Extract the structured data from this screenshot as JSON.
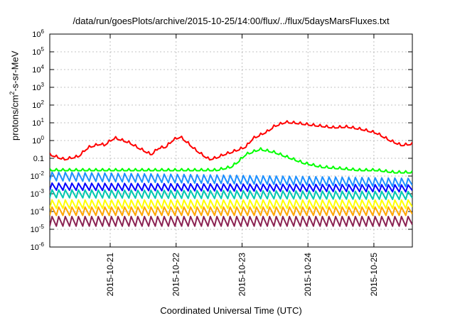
{
  "chart_data": {
    "type": "line",
    "title": "/data/run/goesPlots/archive/2015-10-25/14:00/flux/../flux/5daysMarsFluxes.txt",
    "xlabel": "Coordinated Universal Time (UTC)",
    "ylabel": {
      "pre": "protons/cm",
      "sup": "2",
      "post": "-s-sr-MeV"
    },
    "x_ticks": [
      "2015-10-21",
      "2015-10-22",
      "2015-10-23",
      "2015-10-24",
      "2015-10-25"
    ],
    "x_range": [
      "2015-10-20 02:00",
      "2015-10-25 14:00"
    ],
    "y_scale": "log",
    "ylim": [
      1e-06,
      1000000.0
    ],
    "y_ticks": [
      {
        "b": "10",
        "e": "-6"
      },
      {
        "b": "10",
        "e": "-5"
      },
      {
        "b": "10",
        "e": "-4"
      },
      {
        "b": "10",
        "e": "-3"
      },
      {
        "b": "10",
        "e": "-2"
      },
      {
        "b": "0.1",
        "e": ""
      },
      {
        "b": "10",
        "e": "0"
      },
      {
        "b": "10",
        "e": "1"
      },
      {
        "b": "10",
        "e": "2"
      },
      {
        "b": "10",
        "e": "3"
      },
      {
        "b": "10",
        "e": "4"
      },
      {
        "b": "10",
        "e": "5"
      },
      {
        "b": "10",
        "e": "6"
      }
    ],
    "grid": true,
    "legend": "none",
    "series": [
      {
        "color": "#ff0000",
        "mode": "event",
        "x": [
          0.0,
          0.04,
          0.08,
          0.1,
          0.11,
          0.14,
          0.15,
          0.17,
          0.18,
          0.22,
          0.24,
          0.28,
          0.3,
          0.32,
          0.34,
          0.36,
          0.38,
          0.4,
          0.42,
          0.44,
          0.46,
          0.48,
          0.5,
          0.54,
          0.56,
          0.6,
          0.62,
          0.65,
          0.68,
          0.72,
          0.75,
          0.78,
          0.82,
          0.86,
          0.9,
          0.94,
          0.97,
          1.0
        ],
        "y": [
          0.15,
          0.08,
          0.12,
          0.3,
          0.4,
          0.6,
          0.5,
          1.0,
          1.3,
          0.7,
          0.4,
          0.15,
          0.35,
          0.4,
          1.0,
          1.5,
          0.7,
          0.3,
          0.15,
          0.08,
          0.1,
          0.15,
          0.2,
          0.4,
          1.2,
          3.0,
          6.0,
          10.0,
          9.0,
          7.0,
          6.0,
          5.0,
          5.5,
          4.0,
          2.5,
          0.9,
          0.5,
          0.6
        ]
      },
      {
        "color": "#00ff00",
        "mode": "event",
        "x": [
          0.0,
          0.1,
          0.2,
          0.3,
          0.4,
          0.46,
          0.5,
          0.52,
          0.54,
          0.58,
          0.62,
          0.66,
          0.7,
          0.75,
          0.8,
          0.85,
          0.9,
          0.95,
          1.0
        ],
        "y": [
          0.02,
          0.02,
          0.02,
          0.02,
          0.02,
          0.02,
          0.03,
          0.06,
          0.15,
          0.3,
          0.2,
          0.1,
          0.05,
          0.03,
          0.025,
          0.02,
          0.02,
          0.015,
          0.015
        ]
      },
      {
        "color": "#1e90ff",
        "mode": "saw",
        "base": 0.0055,
        "amp": 3.0,
        "slope": -0.35
      },
      {
        "color": "#0000ff",
        "mode": "saw",
        "base": 0.0016,
        "amp": 2.5,
        "slope": -0.1
      },
      {
        "color": "#00c8b0",
        "mode": "saw",
        "base": 0.0006,
        "amp": 2.8,
        "slope": -0.1
      },
      {
        "color": "#ffff00",
        "mode": "saw",
        "base": 0.00015,
        "amp": 3.0,
        "slope": 0.0
      },
      {
        "color": "#ffa500",
        "mode": "saw",
        "base": 6e-05,
        "amp": 3.0,
        "slope": 0.0
      },
      {
        "color": "#8b2252",
        "mode": "saw",
        "base": 1.5e-05,
        "amp": 3.5,
        "slope": 0.0
      }
    ]
  }
}
